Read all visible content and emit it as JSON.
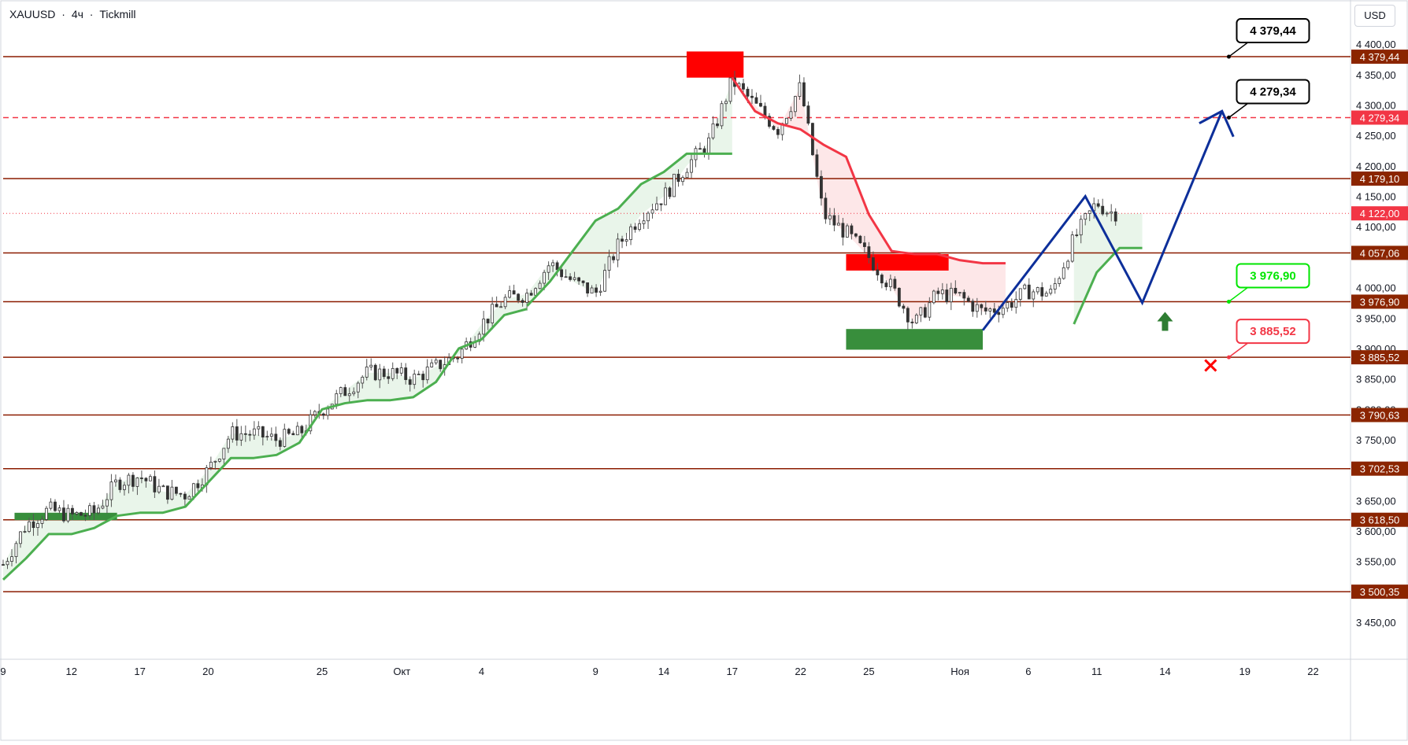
{
  "header": {
    "symbol": "XAUUSD",
    "timeframe": "4ч",
    "broker": "Tickmill",
    "sep1": "·",
    "sep2": "·",
    "currency": "USD"
  },
  "colors": {
    "level_line": "#8b1c00",
    "level_label_bg": "#8b2500",
    "current_label_bg": "#f23645",
    "up_candle": "#26a69a",
    "down_candle": "#ef5350",
    "supertrend_up": "#4caf50",
    "supertrend_down": "#f23645",
    "zone_red": "#ff0000",
    "zone_green": "#388e3c",
    "forecast_path": "#0d2f9a",
    "callout_black": "#000000",
    "callout_green": "#00e600",
    "callout_red": "#f23645",
    "arrow_up": "#2e7d32",
    "cross": "#ff0000"
  },
  "chart_data": {
    "type": "candlestick",
    "symbol": "XAUUSD",
    "timeframe": "4h",
    "ylim": [
      3410,
      4470
    ],
    "y_ticks": [
      "4 400,00",
      "4 350,00",
      "4 300,00",
      "4 250,00",
      "4 200,00",
      "4 150,00",
      "4 100,00",
      "4 000,00",
      "3 950,00",
      "3 900,00",
      "3 850,00",
      "3 800,00",
      "3 750,00",
      "3 650,00",
      "3 600,00",
      "3 550,00",
      "3 450,00"
    ],
    "y_tick_values": [
      4400,
      4350,
      4300,
      4250,
      4200,
      4150,
      4100,
      4000,
      3950,
      3900,
      3850,
      3800,
      3750,
      3650,
      3600,
      3550,
      3450
    ],
    "x_ticks": [
      "9",
      "12",
      "17",
      "20",
      "25",
      "Окт",
      "4",
      "9",
      "14",
      "17",
      "22",
      "25",
      "Ноя",
      "6",
      "11",
      "14",
      "19",
      "22"
    ],
    "x_tick_times": [
      0,
      3,
      6,
      9,
      14,
      17.5,
      21,
      26,
      29,
      32,
      35,
      38,
      42,
      45,
      48,
      51,
      54.5,
      57.5
    ],
    "levels": [
      {
        "value": 4379.44,
        "label": "4 379,44",
        "style": "solid"
      },
      {
        "value": 4279.34,
        "label": "4 279,34",
        "style": "dashed"
      },
      {
        "value": 4179.1,
        "label": "4 179,10",
        "style": "solid"
      },
      {
        "value": 4057.06,
        "label": "4 057,06",
        "style": "solid"
      },
      {
        "value": 3976.9,
        "label": "3 976,90",
        "style": "solid"
      },
      {
        "value": 3885.52,
        "label": "3 885,52",
        "style": "solid"
      },
      {
        "value": 3790.63,
        "label": "3 790,63",
        "style": "solid"
      },
      {
        "value": 3702.53,
        "label": "3 702,53",
        "style": "solid"
      },
      {
        "value": 3618.5,
        "label": "3 618,50",
        "style": "solid"
      },
      {
        "value": 3500.35,
        "label": "3 500,35",
        "style": "solid"
      }
    ],
    "current_price": {
      "value": 4122.0,
      "label": "4 122,00"
    },
    "close_path": [
      [
        0,
        3545
      ],
      [
        1,
        3610
      ],
      [
        2,
        3635
      ],
      [
        3,
        3625
      ],
      [
        4,
        3630
      ],
      [
        5,
        3680
      ],
      [
        6,
        3690
      ],
      [
        7,
        3665
      ],
      [
        8,
        3660
      ],
      [
        9,
        3700
      ],
      [
        10,
        3760
      ],
      [
        11,
        3760
      ],
      [
        12,
        3750
      ],
      [
        13,
        3760
      ],
      [
        14,
        3800
      ],
      [
        15,
        3830
      ],
      [
        16,
        3860
      ],
      [
        17,
        3860
      ],
      [
        18,
        3850
      ],
      [
        19,
        3870
      ],
      [
        20,
        3890
      ],
      [
        21,
        3940
      ],
      [
        22,
        3980
      ],
      [
        23,
        3990
      ],
      [
        24,
        4040
      ],
      [
        25,
        4010
      ],
      [
        26,
        3990
      ],
      [
        27,
        4070
      ],
      [
        28,
        4120
      ],
      [
        29,
        4150
      ],
      [
        30,
        4200
      ],
      [
        31,
        4240
      ],
      [
        32,
        4340
      ],
      [
        33,
        4300
      ],
      [
        34,
        4260
      ],
      [
        35,
        4330
      ],
      [
        36,
        4120
      ],
      [
        37,
        4090
      ],
      [
        38,
        4050
      ],
      [
        39,
        4000
      ],
      [
        40,
        3940
      ],
      [
        41,
        3990
      ],
      [
        42,
        3985
      ],
      [
        43,
        3960
      ],
      [
        44,
        3970
      ],
      [
        45,
        3995
      ],
      [
        46,
        3990
      ],
      [
        47,
        4080
      ],
      [
        48,
        4140
      ],
      [
        48.5,
        4125
      ],
      [
        49,
        4122
      ]
    ],
    "supertrend_up": [
      [
        0,
        3520
      ],
      [
        1,
        3555
      ],
      [
        2,
        3595
      ],
      [
        3,
        3595
      ],
      [
        4,
        3605
      ],
      [
        5,
        3625
      ],
      [
        6,
        3630
      ],
      [
        7,
        3630
      ],
      [
        8,
        3640
      ],
      [
        9,
        3680
      ],
      [
        10,
        3720
      ],
      [
        11,
        3720
      ],
      [
        12,
        3725
      ],
      [
        13,
        3745
      ],
      [
        14,
        3800
      ],
      [
        15,
        3810
      ],
      [
        16,
        3815
      ],
      [
        17,
        3815
      ],
      [
        18,
        3820
      ],
      [
        19,
        3845
      ],
      [
        20,
        3900
      ],
      [
        21,
        3915
      ],
      [
        22,
        3955
      ],
      [
        23,
        3965
      ]
    ],
    "supertrend_up2": [
      [
        23,
        3970
      ],
      [
        24,
        4010
      ],
      [
        25,
        4060
      ],
      [
        26,
        4110
      ],
      [
        27,
        4130
      ],
      [
        28,
        4170
      ],
      [
        29,
        4190
      ],
      [
        30,
        4220
      ],
      [
        32,
        4220
      ]
    ],
    "supertrend_down": [
      [
        32,
        4345
      ],
      [
        33,
        4290
      ],
      [
        34,
        4270
      ],
      [
        35,
        4260
      ],
      [
        36,
        4235
      ],
      [
        37,
        4215
      ],
      [
        38,
        4120
      ],
      [
        39,
        4060
      ],
      [
        40,
        4055
      ],
      [
        41,
        4055
      ],
      [
        42,
        4045
      ],
      [
        43,
        4040
      ],
      [
        44,
        4040
      ]
    ],
    "supertrend_up3": [
      [
        47,
        3940
      ],
      [
        48,
        4025
      ],
      [
        49,
        4065
      ],
      [
        50,
        4065
      ]
    ],
    "zones": [
      {
        "color": "red",
        "t1": 30,
        "t2": 32.5,
        "v1": 4388,
        "v2": 4345
      },
      {
        "color": "red",
        "t1": 37,
        "t2": 41.5,
        "v1": 4055,
        "v2": 4028
      },
      {
        "color": "green",
        "t1": 37,
        "t2": 43,
        "v1": 3932,
        "v2": 3898
      },
      {
        "color": "green",
        "t1": 0.5,
        "t2": 5,
        "v1": 3630,
        "v2": 3618
      }
    ],
    "forecast_path": [
      [
        43,
        3930
      ],
      [
        47.5,
        4150
      ],
      [
        50,
        3975
      ],
      [
        53.5,
        4290
      ]
    ],
    "forecast_path_2": [
      [
        52.5,
        4270
      ],
      [
        53.5,
        4290
      ],
      [
        54,
        4248
      ]
    ],
    "targets": [
      {
        "label": "4 379,44",
        "value": 4379.44,
        "color": "black"
      },
      {
        "label": "4 279,34",
        "value": 4279.34,
        "color": "black"
      },
      {
        "label": "3 976,90",
        "value": 3976.9,
        "color": "green"
      },
      {
        "label": "3 885,52",
        "value": 3885.52,
        "color": "red"
      }
    ]
  }
}
